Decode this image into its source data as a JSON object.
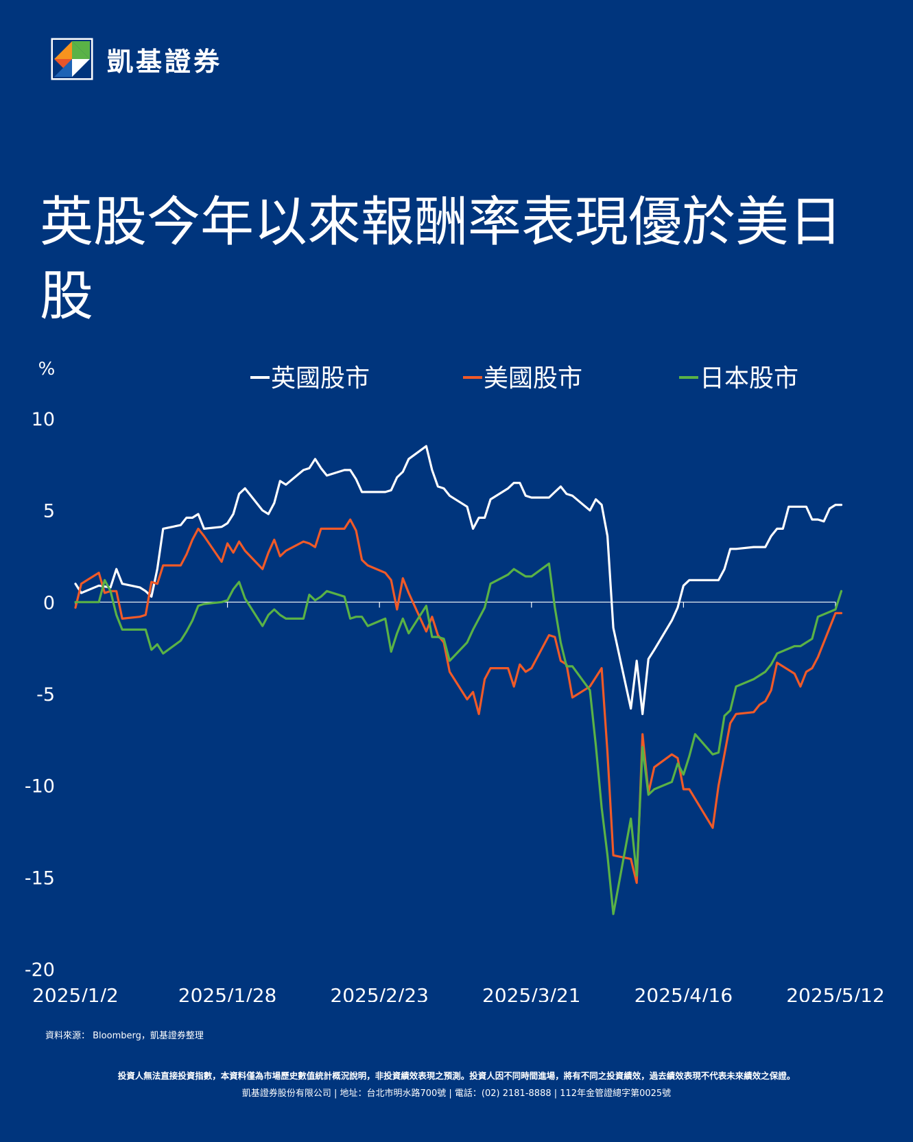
{
  "brand": {
    "name": "凱基證券",
    "logo_icon": "kgi-logo-icon"
  },
  "title": "英股今年以來報酬率表現優於美日股",
  "chart_data": {
    "type": "line",
    "ylabel": "%",
    "ylim": [
      -20,
      10
    ],
    "yticks": [
      10,
      5,
      0,
      -5,
      -10,
      -15,
      -20
    ],
    "xticks": [
      "2025/1/2",
      "2025/1/28",
      "2025/2/23",
      "2025/3/21",
      "2025/4/16",
      "2025/5/12"
    ],
    "xlim": [
      "2025/1/2",
      "2025/5/12"
    ],
    "grid": false,
    "zero_line": true,
    "legend_position": "top",
    "series": [
      {
        "name": "英國股市",
        "color": "#ffffff",
        "points": [
          [
            "2025/1/2",
            1.0
          ],
          [
            "2025/1/3",
            0.5
          ],
          [
            "2025/1/6",
            0.9
          ],
          [
            "2025/1/8",
            0.8
          ],
          [
            "2025/1/9",
            1.8
          ],
          [
            "2025/1/10",
            1.0
          ],
          [
            "2025/1/13",
            0.8
          ],
          [
            "2025/1/14",
            0.6
          ],
          [
            "2025/1/15",
            0.3
          ],
          [
            "2025/1/16",
            1.8
          ],
          [
            "2025/1/17",
            4.0
          ],
          [
            "2025/1/20",
            4.2
          ],
          [
            "2025/1/21",
            4.6
          ],
          [
            "2025/1/22",
            4.6
          ],
          [
            "2025/1/23",
            4.8
          ],
          [
            "2025/1/24",
            4.0
          ],
          [
            "2025/1/27",
            4.1
          ],
          [
            "2025/1/28",
            4.3
          ],
          [
            "2025/1/29",
            4.8
          ],
          [
            "2025/1/30",
            5.9
          ],
          [
            "2025/1/31",
            6.2
          ],
          [
            "2025/2/3",
            5.0
          ],
          [
            "2025/2/4",
            4.8
          ],
          [
            "2025/2/5",
            5.4
          ],
          [
            "2025/2/6",
            6.6
          ],
          [
            "2025/2/7",
            6.4
          ],
          [
            "2025/2/10",
            7.2
          ],
          [
            "2025/2/11",
            7.3
          ],
          [
            "2025/2/12",
            7.8
          ],
          [
            "2025/2/13",
            7.3
          ],
          [
            "2025/2/14",
            6.9
          ],
          [
            "2025/2/17",
            7.2
          ],
          [
            "2025/2/18",
            7.2
          ],
          [
            "2025/2/19",
            6.7
          ],
          [
            "2025/2/20",
            6.0
          ],
          [
            "2025/2/21",
            6.0
          ],
          [
            "2025/2/24",
            6.0
          ],
          [
            "2025/2/25",
            6.1
          ],
          [
            "2025/2/26",
            6.8
          ],
          [
            "2025/2/27",
            7.1
          ],
          [
            "2025/2/28",
            7.8
          ],
          [
            "2025/3/3",
            8.5
          ],
          [
            "2025/3/4",
            7.2
          ],
          [
            "2025/3/5",
            6.3
          ],
          [
            "2025/3/6",
            6.2
          ],
          [
            "2025/3/7",
            5.8
          ],
          [
            "2025/3/10",
            5.2
          ],
          [
            "2025/3/11",
            4.0
          ],
          [
            "2025/3/12",
            4.6
          ],
          [
            "2025/3/13",
            4.6
          ],
          [
            "2025/3/14",
            5.6
          ],
          [
            "2025/3/17",
            6.2
          ],
          [
            "2025/3/18",
            6.5
          ],
          [
            "2025/3/19",
            6.5
          ],
          [
            "2025/3/20",
            5.8
          ],
          [
            "2025/3/21",
            5.7
          ],
          [
            "2025/3/24",
            5.7
          ],
          [
            "2025/3/25",
            6.0
          ],
          [
            "2025/3/26",
            6.3
          ],
          [
            "2025/3/27",
            5.9
          ],
          [
            "2025/3/28",
            5.8
          ],
          [
            "2025/3/31",
            5.0
          ],
          [
            "2025/4/1",
            5.6
          ],
          [
            "2025/4/2",
            5.3
          ],
          [
            "2025/4/3",
            3.6
          ],
          [
            "2025/4/4",
            -1.4
          ],
          [
            "2025/4/7",
            -5.8
          ],
          [
            "2025/4/8",
            -3.2
          ],
          [
            "2025/4/9",
            -6.1
          ],
          [
            "2025/4/10",
            -3.1
          ],
          [
            "2025/4/11",
            -2.6
          ],
          [
            "2025/4/14",
            -1.0
          ],
          [
            "2025/4/15",
            -0.3
          ],
          [
            "2025/4/16",
            0.9
          ],
          [
            "2025/4/17",
            1.2
          ],
          [
            "2025/4/22",
            1.2
          ],
          [
            "2025/4/23",
            1.8
          ],
          [
            "2025/4/24",
            2.9
          ],
          [
            "2025/4/25",
            2.9
          ],
          [
            "2025/4/28",
            3.0
          ],
          [
            "2025/4/30",
            3.0
          ],
          [
            "2025/5/1",
            3.6
          ],
          [
            "2025/5/2",
            4.0
          ],
          [
            "2025/5/3",
            4.0
          ],
          [
            "2025/5/4",
            5.2
          ],
          [
            "2025/5/7",
            5.2
          ],
          [
            "2025/5/8",
            4.5
          ],
          [
            "2025/5/9",
            4.5
          ],
          [
            "2025/5/10",
            4.4
          ],
          [
            "2025/5/11",
            5.1
          ],
          [
            "2025/5/12",
            5.3
          ],
          [
            "2025/5/13",
            5.3
          ]
        ]
      },
      {
        "name": "美國股市",
        "color": "#f05a28",
        "points": [
          [
            "2025/1/2",
            -0.3
          ],
          [
            "2025/1/3",
            1.0
          ],
          [
            "2025/1/6",
            1.6
          ],
          [
            "2025/1/7",
            0.5
          ],
          [
            "2025/1/8",
            0.6
          ],
          [
            "2025/1/9",
            0.6
          ],
          [
            "2025/1/10",
            -0.9
          ],
          [
            "2025/1/13",
            -0.8
          ],
          [
            "2025/1/14",
            -0.7
          ],
          [
            "2025/1/15",
            1.1
          ],
          [
            "2025/1/16",
            1.0
          ],
          [
            "2025/1/17",
            2.0
          ],
          [
            "2025/1/20",
            2.0
          ],
          [
            "2025/1/21",
            2.6
          ],
          [
            "2025/1/22",
            3.4
          ],
          [
            "2025/1/23",
            4.0
          ],
          [
            "2025/1/24",
            3.6
          ],
          [
            "2025/1/27",
            2.2
          ],
          [
            "2025/1/28",
            3.2
          ],
          [
            "2025/1/29",
            2.7
          ],
          [
            "2025/1/30",
            3.3
          ],
          [
            "2025/1/31",
            2.8
          ],
          [
            "2025/2/3",
            1.8
          ],
          [
            "2025/2/4",
            2.7
          ],
          [
            "2025/2/5",
            3.4
          ],
          [
            "2025/2/6",
            2.5
          ],
          [
            "2025/2/7",
            2.8
          ],
          [
            "2025/2/10",
            3.3
          ],
          [
            "2025/2/11",
            3.2
          ],
          [
            "2025/2/12",
            3.0
          ],
          [
            "2025/2/13",
            4.0
          ],
          [
            "2025/2/14",
            4.0
          ],
          [
            "2025/2/17",
            4.0
          ],
          [
            "2025/2/18",
            4.5
          ],
          [
            "2025/2/19",
            3.9
          ],
          [
            "2025/2/20",
            2.3
          ],
          [
            "2025/2/21",
            2.0
          ],
          [
            "2025/2/24",
            1.6
          ],
          [
            "2025/2/25",
            1.2
          ],
          [
            "2025/2/26",
            -0.4
          ],
          [
            "2025/2/27",
            1.3
          ],
          [
            "2025/2/28",
            0.5
          ],
          [
            "2025/3/3",
            -1.6
          ],
          [
            "2025/3/4",
            -0.8
          ],
          [
            "2025/3/5",
            -1.8
          ],
          [
            "2025/3/6",
            -2.2
          ],
          [
            "2025/3/7",
            -3.8
          ],
          [
            "2025/3/10",
            -5.3
          ],
          [
            "2025/3/11",
            -4.9
          ],
          [
            "2025/3/12",
            -6.1
          ],
          [
            "2025/3/13",
            -4.2
          ],
          [
            "2025/3/14",
            -3.6
          ],
          [
            "2025/3/17",
            -3.6
          ],
          [
            "2025/3/18",
            -4.6
          ],
          [
            "2025/3/19",
            -3.4
          ],
          [
            "2025/3/20",
            -3.8
          ],
          [
            "2025/3/21",
            -3.6
          ],
          [
            "2025/3/24",
            -1.8
          ],
          [
            "2025/3/25",
            -1.9
          ],
          [
            "2025/3/26",
            -3.2
          ],
          [
            "2025/3/27",
            -3.4
          ],
          [
            "2025/3/28",
            -5.2
          ],
          [
            "2025/3/31",
            -4.6
          ],
          [
            "2025/4/1",
            -4.1
          ],
          [
            "2025/4/2",
            -3.6
          ],
          [
            "2025/4/3",
            -8.2
          ],
          [
            "2025/4/4",
            -13.8
          ],
          [
            "2025/4/7",
            -14.0
          ],
          [
            "2025/4/8",
            -15.3
          ],
          [
            "2025/4/9",
            -7.2
          ],
          [
            "2025/4/10",
            -10.4
          ],
          [
            "2025/4/11",
            -9.0
          ],
          [
            "2025/4/14",
            -8.3
          ],
          [
            "2025/4/15",
            -8.5
          ],
          [
            "2025/4/16",
            -10.2
          ],
          [
            "2025/4/17",
            -10.2
          ],
          [
            "2025/4/21",
            -12.3
          ],
          [
            "2025/4/22",
            -10.0
          ],
          [
            "2025/4/23",
            -8.3
          ],
          [
            "2025/4/24",
            -6.6
          ],
          [
            "2025/4/25",
            -6.1
          ],
          [
            "2025/4/28",
            -6.0
          ],
          [
            "2025/4/29",
            -5.6
          ],
          [
            "2025/4/30",
            -5.4
          ],
          [
            "2025/5/1",
            -4.8
          ],
          [
            "2025/5/2",
            -3.3
          ],
          [
            "2025/5/5",
            -3.9
          ],
          [
            "2025/5/6",
            -4.6
          ],
          [
            "2025/5/7",
            -3.8
          ],
          [
            "2025/5/8",
            -3.6
          ],
          [
            "2025/5/9",
            -3.0
          ],
          [
            "2025/5/12",
            -0.6
          ],
          [
            "2025/5/13",
            -0.6
          ]
        ]
      },
      {
        "name": "日本股市",
        "color": "#5ab246",
        "points": [
          [
            "2025/1/2",
            0.0
          ],
          [
            "2025/1/6",
            0.0
          ],
          [
            "2025/1/7",
            1.2
          ],
          [
            "2025/1/8",
            0.6
          ],
          [
            "2025/1/9",
            -0.7
          ],
          [
            "2025/1/10",
            -1.5
          ],
          [
            "2025/1/14",
            -1.5
          ],
          [
            "2025/1/15",
            -2.6
          ],
          [
            "2025/1/16",
            -2.3
          ],
          [
            "2025/1/17",
            -2.8
          ],
          [
            "2025/1/20",
            -2.1
          ],
          [
            "2025/1/21",
            -1.6
          ],
          [
            "2025/1/22",
            -1.0
          ],
          [
            "2025/1/23",
            -0.2
          ],
          [
            "2025/1/24",
            -0.1
          ],
          [
            "2025/1/27",
            0.0
          ],
          [
            "2025/1/28",
            0.1
          ],
          [
            "2025/1/29",
            0.7
          ],
          [
            "2025/1/30",
            1.1
          ],
          [
            "2025/1/31",
            0.2
          ],
          [
            "2025/2/3",
            -1.3
          ],
          [
            "2025/2/4",
            -0.7
          ],
          [
            "2025/2/5",
            -0.4
          ],
          [
            "2025/2/6",
            -0.7
          ],
          [
            "2025/2/7",
            -0.9
          ],
          [
            "2025/2/10",
            -0.9
          ],
          [
            "2025/2/11",
            0.4
          ],
          [
            "2025/2/12",
            0.1
          ],
          [
            "2025/2/13",
            0.3
          ],
          [
            "2025/2/14",
            0.6
          ],
          [
            "2025/2/17",
            0.3
          ],
          [
            "2025/2/18",
            -0.9
          ],
          [
            "2025/2/19",
            -0.8
          ],
          [
            "2025/2/20",
            -0.8
          ],
          [
            "2025/2/21",
            -1.3
          ],
          [
            "2025/2/24",
            -0.9
          ],
          [
            "2025/2/25",
            -2.7
          ],
          [
            "2025/2/26",
            -1.7
          ],
          [
            "2025/2/27",
            -0.9
          ],
          [
            "2025/2/28",
            -1.7
          ],
          [
            "2025/3/3",
            -0.2
          ],
          [
            "2025/3/4",
            -1.9
          ],
          [
            "2025/3/5",
            -1.9
          ],
          [
            "2025/3/6",
            -2.0
          ],
          [
            "2025/3/7",
            -3.2
          ],
          [
            "2025/3/10",
            -2.2
          ],
          [
            "2025/3/11",
            -1.5
          ],
          [
            "2025/3/12",
            -0.9
          ],
          [
            "2025/3/13",
            -0.3
          ],
          [
            "2025/3/14",
            1.0
          ],
          [
            "2025/3/17",
            1.5
          ],
          [
            "2025/3/18",
            1.8
          ],
          [
            "2025/3/19",
            1.6
          ],
          [
            "2025/3/20",
            1.4
          ],
          [
            "2025/3/21",
            1.4
          ],
          [
            "2025/3/24",
            2.1
          ],
          [
            "2025/3/25",
            -0.3
          ],
          [
            "2025/3/26",
            -2.2
          ],
          [
            "2025/3/27",
            -3.5
          ],
          [
            "2025/3/28",
            -3.5
          ],
          [
            "2025/3/31",
            -4.8
          ],
          [
            "2025/4/1",
            -7.8
          ],
          [
            "2025/4/2",
            -11.2
          ],
          [
            "2025/4/3",
            -13.8
          ],
          [
            "2025/4/4",
            -17.0
          ],
          [
            "2025/4/7",
            -11.8
          ],
          [
            "2025/4/8",
            -14.9
          ],
          [
            "2025/4/9",
            -7.9
          ],
          [
            "2025/4/10",
            -10.5
          ],
          [
            "2025/4/11",
            -10.2
          ],
          [
            "2025/4/14",
            -9.8
          ],
          [
            "2025/4/15",
            -8.8
          ],
          [
            "2025/4/16",
            -9.4
          ],
          [
            "2025/4/17",
            -8.4
          ],
          [
            "2025/4/18",
            -7.2
          ],
          [
            "2025/4/21",
            -8.3
          ],
          [
            "2025/4/22",
            -8.2
          ],
          [
            "2025/4/23",
            -6.2
          ],
          [
            "2025/4/24",
            -5.9
          ],
          [
            "2025/4/25",
            -4.6
          ],
          [
            "2025/4/28",
            -4.2
          ],
          [
            "2025/4/30",
            -3.8
          ],
          [
            "2025/5/1",
            -3.4
          ],
          [
            "2025/5/2",
            -2.8
          ],
          [
            "2025/5/5",
            -2.4
          ],
          [
            "2025/5/6",
            -2.4
          ],
          [
            "2025/5/7",
            -2.2
          ],
          [
            "2025/5/8",
            -2.0
          ],
          [
            "2025/5/9",
            -0.8
          ],
          [
            "2025/5/12",
            -0.4
          ],
          [
            "2025/5/13",
            0.6
          ]
        ]
      }
    ]
  },
  "footer": {
    "source": "資料來源： Bloomberg，凱基證券整理",
    "disclaimer": "投資人無法直接投資指數，本資料僅為市場歷史數值統計概況說明，非投資績效表現之預測。投資人因不同時間進場，將有不同之投資績效，過去績效表現不代表未來績效之保證。",
    "company": "凱基證券股份有限公司 | 地址：台北市明水路700號 | 電話：(02) 2181-8888 | 112年金管證總字第0025號"
  }
}
